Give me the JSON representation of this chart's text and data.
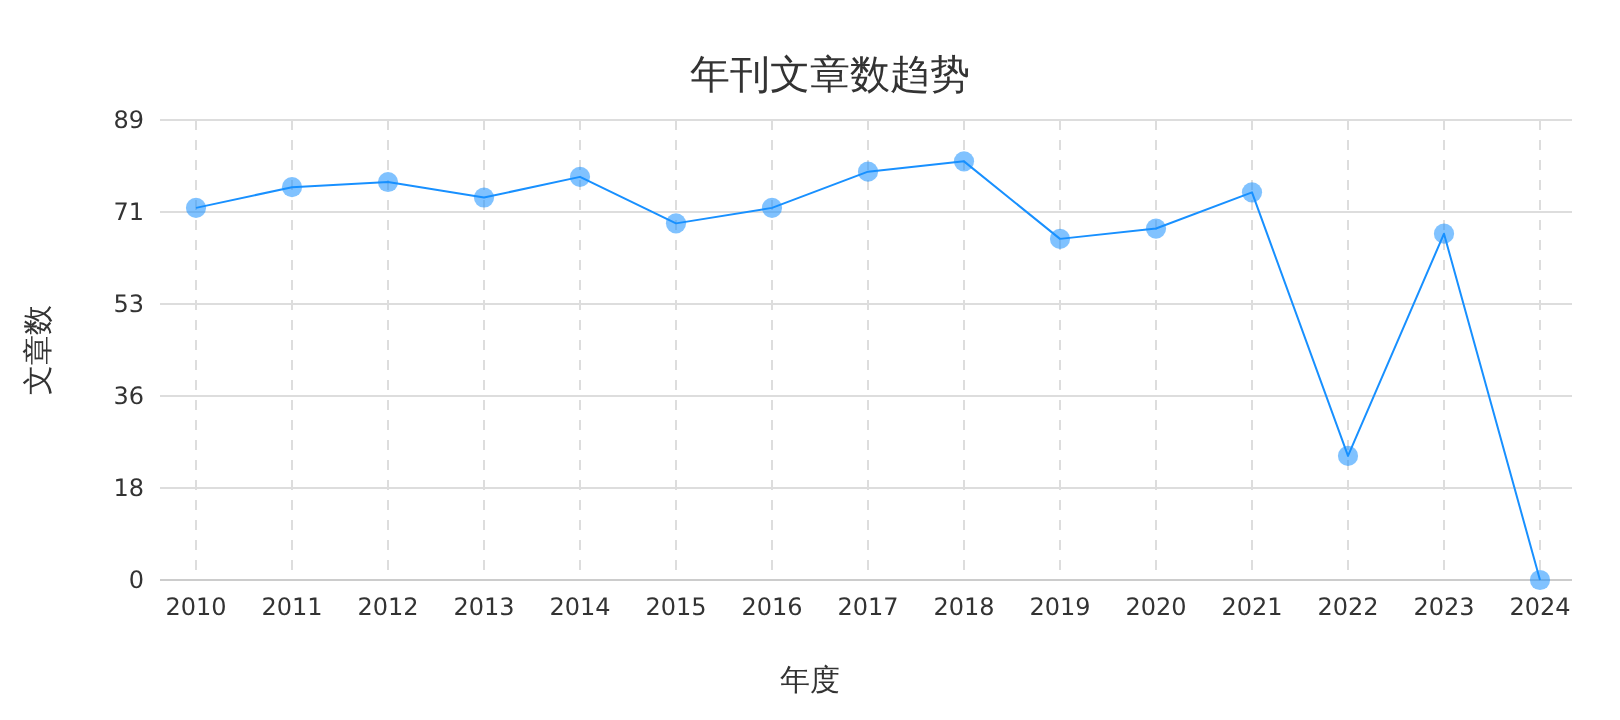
{
  "chart_data": {
    "type": "line",
    "title": "年刊文章数趋势",
    "xlabel": "年度",
    "ylabel": "文章数",
    "categories": [
      "2010",
      "2011",
      "2012",
      "2013",
      "2014",
      "2015",
      "2016",
      "2017",
      "2018",
      "2019",
      "2020",
      "2021",
      "2022",
      "2023",
      "2024"
    ],
    "series": [
      {
        "color": "#1890ff",
        "values": [
          72,
          76,
          77,
          74,
          78,
          69,
          72,
          79,
          81,
          66,
          68,
          75,
          24,
          67,
          0
        ]
      }
    ],
    "ylim": [
      0,
      89
    ],
    "yticks": [
      0,
      {
        "value": 17.8,
        "label": "18"
      },
      {
        "value": 35.6,
        "label": "36"
      },
      {
        "value": 53.4,
        "label": "53"
      },
      {
        "value": 71.2,
        "label": "71"
      },
      89
    ],
    "grid": true,
    "marker": "circle",
    "line_style": "solid"
  }
}
